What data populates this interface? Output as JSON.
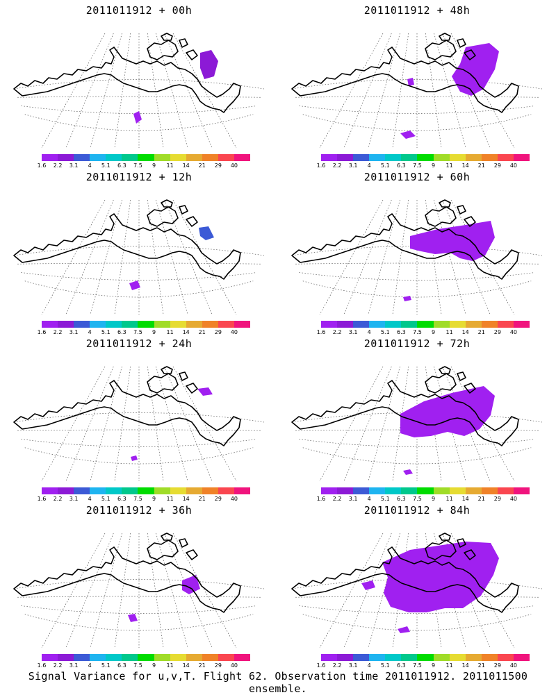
{
  "colorbar": {
    "colors": [
      "#a020f0",
      "#8c1ad6",
      "#3c5ad6",
      "#1eb4f0",
      "#00c8c8",
      "#00c88c",
      "#00dc00",
      "#a0dc28",
      "#e6dc32",
      "#e6aa32",
      "#f08228",
      "#fa4650",
      "#f0147d"
    ],
    "labels": [
      "1.6",
      "2.2",
      "3.1",
      "4",
      "5.1",
      "6.3",
      "7.5",
      "9",
      "11",
      "14",
      "21",
      "29",
      "40"
    ]
  },
  "panels": [
    {
      "title": "2011011912 + 00h",
      "fill": [],
      "blue": false
    },
    {
      "title": "2011011912 + 48h",
      "fill": [],
      "blue": false
    },
    {
      "title": "2011011912 + 12h",
      "fill": [],
      "blue": true
    },
    {
      "title": "2011011912 + 60h",
      "fill": [],
      "blue": true
    },
    {
      "title": "2011011912 + 24h",
      "fill": [],
      "blue": false
    },
    {
      "title": "2011011912 + 72h",
      "fill": [],
      "blue": true
    },
    {
      "title": "2011011912 + 36h",
      "fill": [],
      "blue": false
    },
    {
      "title": "2011011912 + 84h",
      "fill": [],
      "blue": true
    }
  ],
  "footer": "Signal Variance for u,v,T. Flight 62. Observation time 2011011912. 2011011500 ensemble."
}
